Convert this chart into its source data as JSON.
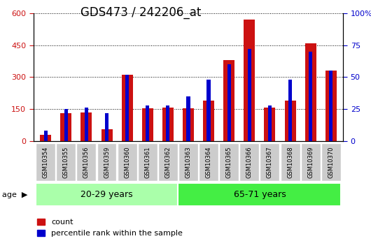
{
  "title": "GDS473 / 242206_at",
  "samples": [
    "GSM10354",
    "GSM10355",
    "GSM10356",
    "GSM10359",
    "GSM10360",
    "GSM10361",
    "GSM10362",
    "GSM10363",
    "GSM10364",
    "GSM10365",
    "GSM10366",
    "GSM10367",
    "GSM10368",
    "GSM10369",
    "GSM10370"
  ],
  "count": [
    30,
    130,
    135,
    55,
    310,
    155,
    158,
    155,
    190,
    380,
    570,
    158,
    190,
    460,
    330
  ],
  "percentile": [
    8,
    25,
    26,
    22,
    52,
    28,
    28,
    35,
    48,
    60,
    72,
    28,
    48,
    70,
    55
  ],
  "groups": [
    {
      "label": "20-29 years",
      "start": 0,
      "end": 7,
      "color": "#aaffaa"
    },
    {
      "label": "65-71 years",
      "start": 7,
      "end": 15,
      "color": "#44ee44"
    }
  ],
  "ylim_left": [
    0,
    600
  ],
  "ylim_right": [
    0,
    100
  ],
  "yticks_left": [
    0,
    150,
    300,
    450,
    600
  ],
  "yticks_right": [
    0,
    25,
    50,
    75,
    100
  ],
  "bar_color_count": "#cc1111",
  "bar_color_pct": "#0000cc",
  "title_fontsize": 12,
  "legend_count_label": "count",
  "legend_pct_label": "percentile rank within the sample",
  "fig_bg": "#ffffff",
  "plot_bg": "#ffffff",
  "tick_box_color": "#cccccc",
  "group_border_color": "#ffffff"
}
